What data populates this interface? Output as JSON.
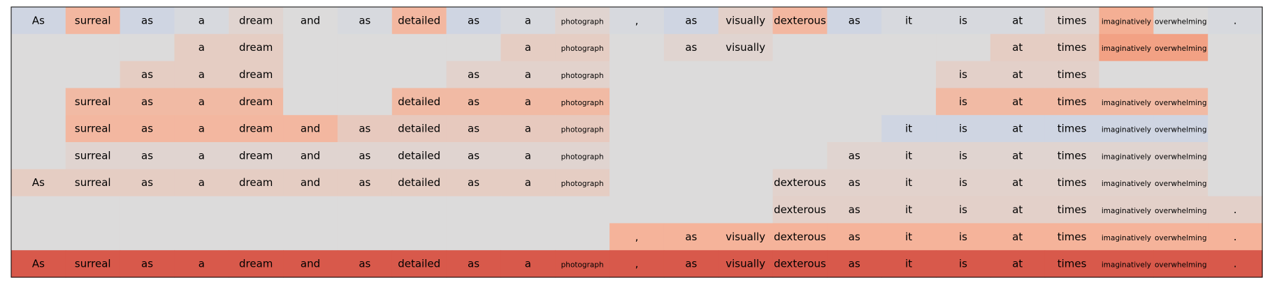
{
  "chart_data": {
    "type": "heatmap",
    "columns": [
      "As",
      "surreal",
      "as",
      "a",
      "dream",
      "and",
      "as",
      "detailed",
      "as",
      "a",
      "photograph",
      ",",
      "as",
      "visually",
      "dexterous",
      "as",
      "it",
      "is",
      "at",
      "times",
      "imaginatively",
      "overwhelming",
      "."
    ],
    "rows": [
      {
        "tokens": [
          "As",
          "surreal",
          "as",
          "a",
          "dream",
          "and",
          "as",
          "detailed",
          "as",
          "a",
          "photograph",
          ",",
          "as",
          "visually",
          "dexterous",
          "as",
          "it",
          "is",
          "at",
          "times",
          "imaginatively",
          "overwhelming",
          "."
        ],
        "shade": [
          -0.1,
          0.32,
          -0.1,
          -0.04,
          0.06,
          0.0,
          -0.04,
          0.32,
          -0.1,
          -0.04,
          0.06,
          -0.04,
          -0.1,
          0.1,
          0.32,
          -0.1,
          -0.04,
          -0.04,
          -0.04,
          0.06,
          0.4,
          0.0,
          -0.04
        ]
      },
      {
        "tokens": [
          "",
          "",
          "",
          "a",
          "dream",
          "",
          "",
          "",
          "",
          "a",
          "photograph",
          "",
          "as",
          "visually",
          "",
          "",
          "",
          "",
          "at",
          "times",
          "imaginatively",
          "overwhelming",
          ""
        ],
        "shade": [
          0,
          0,
          0,
          0.13,
          0.13,
          0,
          0,
          0,
          0,
          0.13,
          0.13,
          0,
          0.06,
          0.06,
          0,
          0,
          0,
          0,
          0.13,
          0.13,
          0.52,
          0.52,
          0
        ]
      },
      {
        "tokens": [
          "",
          "",
          "as",
          "a",
          "dream",
          "",
          "",
          "",
          "as",
          "a",
          "photograph",
          "",
          "",
          "",
          "",
          "",
          "",
          "is",
          "at",
          "times",
          "",
          "",
          ""
        ],
        "shade": [
          0,
          0,
          0.13,
          0.13,
          0.13,
          0,
          0,
          0,
          0.08,
          0.08,
          0.08,
          0,
          0,
          0,
          0,
          0,
          0,
          0.1,
          0.1,
          0.1,
          0,
          0,
          0
        ]
      },
      {
        "tokens": [
          "",
          "surreal",
          "as",
          "a",
          "dream",
          "",
          "",
          "detailed",
          "as",
          "a",
          "photograph",
          "",
          "",
          "",
          "",
          "",
          "",
          "is",
          "at",
          "times",
          "imaginatively",
          "overwhelming",
          ""
        ],
        "shade": [
          0,
          0.3,
          0.3,
          0.3,
          0.3,
          0,
          0,
          0.3,
          0.3,
          0.3,
          0.3,
          0,
          0,
          0,
          0,
          0,
          0,
          0.3,
          0.3,
          0.3,
          0.3,
          0.3,
          0
        ]
      },
      {
        "tokens": [
          "",
          "surreal",
          "as",
          "a",
          "dream",
          "and",
          "as",
          "detailed",
          "as",
          "a",
          "photograph",
          "",
          "",
          "",
          "",
          "",
          "it",
          "is",
          "at",
          "times",
          "imaginatively",
          "overwhelming",
          ""
        ],
        "shade": [
          0,
          0.32,
          0.32,
          0.32,
          0.32,
          0.32,
          0.16,
          0.16,
          0.16,
          0.16,
          0.16,
          0,
          0,
          0,
          0,
          0,
          -0.1,
          -0.1,
          -0.1,
          -0.1,
          -0.1,
          -0.1,
          0
        ]
      },
      {
        "tokens": [
          "",
          "surreal",
          "as",
          "a",
          "dream",
          "and",
          "as",
          "detailed",
          "as",
          "a",
          "photograph",
          "",
          "",
          "",
          "",
          "as",
          "it",
          "is",
          "at",
          "times",
          "imaginatively",
          "overwhelming",
          ""
        ],
        "shade": [
          0,
          0.06,
          0.06,
          0.06,
          0.06,
          0.06,
          0.06,
          0.06,
          0.06,
          0.06,
          0.06,
          0,
          0,
          0,
          0,
          0.06,
          0.06,
          0.06,
          0.06,
          0.06,
          0.06,
          0.06,
          0
        ]
      },
      {
        "tokens": [
          "As",
          "surreal",
          "as",
          "a",
          "dream",
          "and",
          "as",
          "detailed",
          "as",
          "a",
          "photograph",
          "",
          "",
          "",
          "dexterous",
          "as",
          "it",
          "is",
          "at",
          "times",
          "imaginatively",
          "overwhelming",
          ""
        ],
        "shade": [
          0.13,
          0.13,
          0.13,
          0.13,
          0.13,
          0.13,
          0.13,
          0.13,
          0.13,
          0.13,
          0.13,
          0,
          0,
          0,
          0.08,
          0.08,
          0.08,
          0.08,
          0.08,
          0.08,
          0.08,
          0.08,
          0
        ]
      },
      {
        "tokens": [
          "",
          "",
          "",
          "",
          "",
          "",
          "",
          "",
          "",
          "",
          "",
          "",
          "",
          "",
          "dexterous",
          "as",
          "it",
          "is",
          "at",
          "times",
          "imaginatively",
          "overwhelming",
          "."
        ],
        "shade": [
          0,
          0,
          0,
          0,
          0,
          0,
          0,
          0,
          0,
          0,
          0,
          0,
          0,
          0,
          0.1,
          0.1,
          0.1,
          0.1,
          0.1,
          0.1,
          0.1,
          0.1,
          0.1
        ]
      },
      {
        "tokens": [
          "",
          "",
          "",
          "",
          "",
          "",
          "",
          "",
          "",
          "",
          "",
          ",",
          "as",
          "visually",
          "dexterous",
          "as",
          "it",
          "is",
          "at",
          "times",
          "imaginatively",
          "overwhelming",
          "."
        ],
        "shade": [
          0,
          0,
          0,
          0,
          0,
          0,
          0,
          0,
          0,
          0,
          0,
          0.36,
          0.36,
          0.36,
          0.36,
          0.36,
          0.36,
          0.36,
          0.36,
          0.36,
          0.36,
          0.36,
          0.36
        ]
      },
      {
        "tokens": [
          "As",
          "surreal",
          "as",
          "a",
          "dream",
          "and",
          "as",
          "detailed",
          "as",
          "a",
          "photograph",
          ",",
          "as",
          "visually",
          "dexterous",
          "as",
          "it",
          "is",
          "at",
          "times",
          "imaginatively",
          "overwhelming",
          "."
        ],
        "shade": [
          0.92,
          0.92,
          0.92,
          0.92,
          0.92,
          0.92,
          0.92,
          0.92,
          0.92,
          0.92,
          0.92,
          0.92,
          0.92,
          0.92,
          0.92,
          0.92,
          0.92,
          0.92,
          0.92,
          0.92,
          0.92,
          0.92,
          0.92
        ]
      }
    ],
    "colors": {
      "neutral": "#dcdbdb",
      "positive": "#d24a40",
      "negative": "#cfd5e2",
      "frame": "#000000"
    },
    "grid": false,
    "legend": "none"
  }
}
